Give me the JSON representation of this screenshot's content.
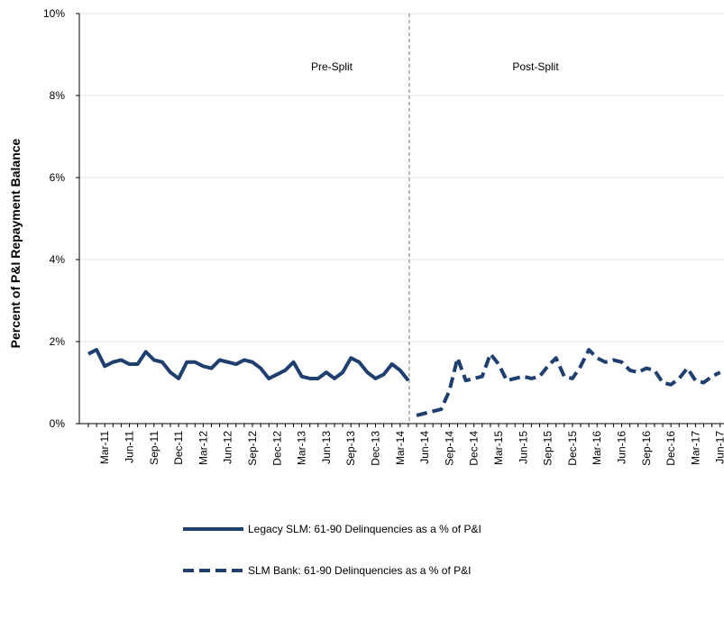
{
  "chart_data": {
    "type": "line",
    "y_label": "Percent of P&I Repayment  Balance",
    "annotations": [
      "Pre-Split",
      "Post-Split"
    ],
    "categories": [
      null,
      null,
      "Mar-11",
      null,
      null,
      "Jun-11",
      null,
      null,
      "Sep-11",
      null,
      null,
      "Dec-11",
      null,
      null,
      "Mar-12",
      null,
      null,
      "Jun-12",
      null,
      null,
      "Sep-12",
      null,
      null,
      "Dec-12",
      null,
      null,
      "Mar-13",
      null,
      null,
      "Jun-13",
      null,
      null,
      "Sep-13",
      null,
      null,
      "Dec-13",
      null,
      null,
      "Mar-14",
      null,
      null,
      "Jun-14",
      null,
      null,
      "Sep-14",
      null,
      null,
      "Dec-14",
      null,
      null,
      "Mar-15",
      null,
      null,
      "Jun-15",
      null,
      null,
      "Sep-15",
      null,
      null,
      "Dec-15",
      null,
      null,
      "Mar-16",
      null,
      null,
      "Jun-16",
      null,
      null,
      "Sep-16",
      null,
      null,
      "Dec-16",
      null,
      null,
      "Mar-17",
      null,
      null,
      "Jun-17"
    ],
    "series": [
      {
        "name": "Legacy SLM: 61-90 Delinquencies as a % of P&I",
        "color": "#1f3f6e",
        "dash": false,
        "values": [
          1.7,
          1.8,
          1.4,
          1.5,
          1.55,
          1.45,
          1.45,
          1.75,
          1.55,
          1.5,
          1.25,
          1.1,
          1.5,
          1.5,
          1.4,
          1.35,
          1.55,
          1.5,
          1.45,
          1.55,
          1.5,
          1.35,
          1.1,
          1.2,
          1.3,
          1.5,
          1.15,
          1.1,
          1.1,
          1.25,
          1.1,
          1.25,
          1.6,
          1.5,
          1.25,
          1.1,
          1.2,
          1.45,
          1.3,
          1.05,
          null,
          null,
          null,
          null,
          null,
          null,
          null,
          null,
          null,
          null,
          null,
          null,
          null,
          null,
          null,
          null,
          null,
          null,
          null,
          null,
          null,
          null,
          null,
          null,
          null,
          null,
          null,
          null,
          null,
          null,
          null,
          null,
          null,
          null,
          null,
          null,
          null,
          null
        ]
      },
      {
        "name": "SLM Bank: 61-90 Delinquencies as a % of P&I",
        "color": "#1f3f6e",
        "dash": true,
        "values": [
          null,
          null,
          null,
          null,
          null,
          null,
          null,
          null,
          null,
          null,
          null,
          null,
          null,
          null,
          null,
          null,
          null,
          null,
          null,
          null,
          null,
          null,
          null,
          null,
          null,
          null,
          null,
          null,
          null,
          null,
          null,
          null,
          null,
          null,
          null,
          null,
          null,
          null,
          null,
          null,
          0.2,
          0.25,
          0.3,
          0.35,
          0.8,
          1.6,
          1.05,
          1.1,
          1.15,
          1.7,
          1.45,
          1.05,
          1.1,
          1.15,
          1.1,
          1.15,
          1.4,
          1.6,
          1.15,
          1.1,
          1.4,
          1.8,
          1.6,
          1.5,
          1.55,
          1.5,
          1.3,
          1.25,
          1.35,
          1.3,
          1.0,
          0.95,
          1.1,
          1.35,
          1.05,
          1.0,
          1.15,
          1.25
        ]
      }
    ],
    "ylim": [
      0,
      10
    ],
    "yticks": [
      {
        "value": 0,
        "label": "0%"
      },
      {
        "value": 2,
        "label": "2%"
      },
      {
        "value": 4,
        "label": "4%"
      },
      {
        "value": 6,
        "label": "6%"
      },
      {
        "value": 8,
        "label": "8%"
      },
      {
        "value": 10,
        "label": "10%"
      }
    ],
    "grid": true
  }
}
